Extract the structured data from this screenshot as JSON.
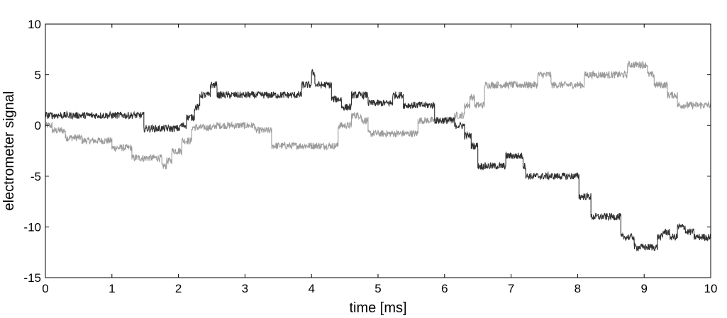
{
  "chart_data": {
    "type": "line",
    "title": "",
    "xlabel": "time [ms]",
    "ylabel": "electrometer signal",
    "xlim": [
      0,
      10
    ],
    "ylim": [
      -15,
      10
    ],
    "xticks": [
      0,
      1,
      2,
      3,
      4,
      5,
      6,
      7,
      8,
      9,
      10
    ],
    "yticks": [
      -15,
      -10,
      -5,
      0,
      5,
      10
    ],
    "grid": false,
    "legend": "none",
    "series": [
      {
        "color": "#303030",
        "x": [
          0.0,
          1.4,
          1.48,
          1.82,
          2.02,
          2.12,
          2.24,
          2.32,
          2.48,
          2.58,
          2.62,
          3.05,
          3.75,
          3.85,
          4.0,
          4.05,
          4.15,
          4.3,
          4.45,
          4.6,
          4.72,
          4.85,
          5.05,
          5.2,
          5.22,
          5.38,
          5.62,
          5.85,
          6.15,
          6.3,
          6.4,
          6.5,
          6.85,
          6.92,
          7.05,
          7.18,
          7.22,
          7.5,
          7.6,
          7.92,
          8.02,
          8.2,
          8.42,
          8.55,
          8.65,
          8.85,
          8.9,
          9.1,
          9.2,
          9.28,
          9.38,
          9.5,
          9.62,
          9.75,
          10.0
        ],
        "y": [
          1,
          1,
          -0.3,
          -0.3,
          0,
          0.8,
          1.8,
          3,
          4,
          3,
          3,
          3,
          3,
          4,
          5.2,
          4,
          4,
          2.6,
          1.8,
          3,
          3,
          2.2,
          2.2,
          2.2,
          3,
          2,
          2,
          0.5,
          0,
          -1,
          -2,
          -4,
          -4,
          -3,
          -3,
          -4,
          -5,
          -5,
          -5,
          -5,
          -7,
          -9,
          -9,
          -9,
          -11,
          -12,
          -12,
          -12,
          -11,
          -10.5,
          -11,
          -10,
          -10.5,
          -11,
          -11
        ]
      },
      {
        "color": "#9c9c9c",
        "x": [
          0.0,
          0.1,
          0.3,
          0.55,
          1.0,
          1.15,
          1.3,
          1.45,
          1.75,
          1.82,
          1.9,
          2.05,
          2.2,
          2.48,
          2.55,
          2.88,
          3.0,
          3.15,
          3.4,
          3.65,
          4.0,
          4.1,
          4.2,
          4.4,
          4.6,
          4.75,
          4.85,
          5.05,
          5.3,
          5.45,
          5.6,
          5.75,
          6.0,
          6.15,
          6.3,
          6.38,
          6.45,
          6.6,
          6.8,
          7.0,
          7.15,
          7.4,
          7.6,
          7.9,
          8.1,
          8.4,
          8.6,
          8.75,
          8.95,
          9.05,
          9.15,
          9.35,
          9.5,
          9.7,
          9.8,
          10.0
        ],
        "y": [
          0,
          -0.5,
          -1.2,
          -1.5,
          -2.2,
          -2.2,
          -3.2,
          -3.2,
          -4,
          -3.5,
          -2.5,
          -1.5,
          -0.2,
          -0.2,
          0,
          0,
          0,
          -0.5,
          -2,
          -2,
          -2,
          -2,
          -2,
          0,
          1,
          0.5,
          -0.8,
          -0.8,
          -0.8,
          -0.8,
          0.5,
          0.5,
          0.5,
          1,
          2,
          2.8,
          2,
          4,
          4,
          4,
          4,
          5,
          4,
          4,
          5,
          5,
          5,
          6,
          6,
          5,
          4,
          3,
          2,
          2,
          2,
          2
        ]
      }
    ]
  }
}
